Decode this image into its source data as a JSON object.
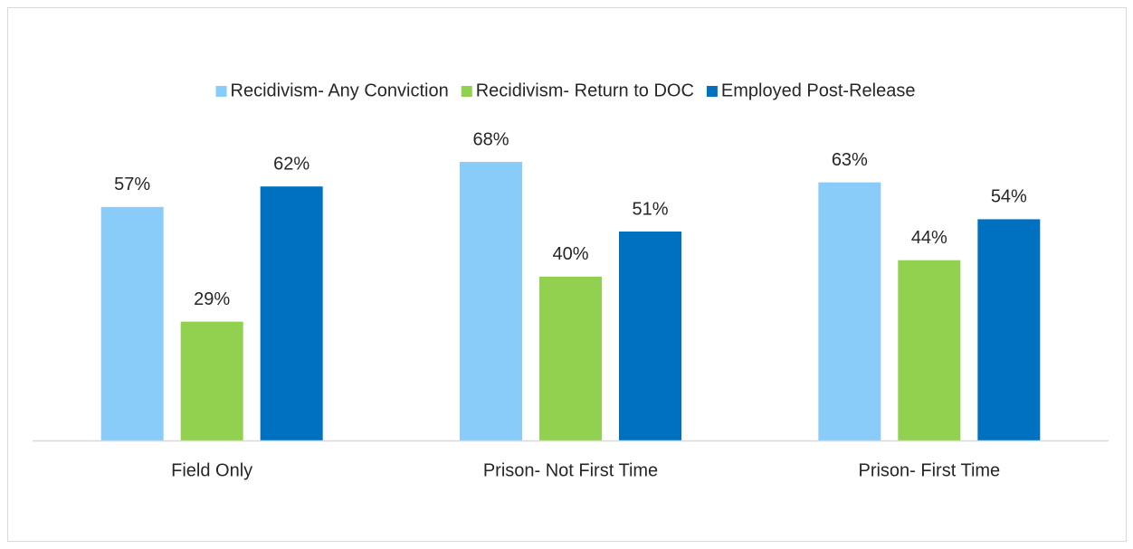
{
  "chart_data": {
    "type": "bar",
    "categories": [
      "Field Only",
      "Prison- Not First Time",
      "Prison- First Time"
    ],
    "series": [
      {
        "name": "Recidivism- Any Conviction",
        "color": "#89cbf9",
        "values": [
          57,
          68,
          63
        ],
        "value_labels": [
          "57%",
          "68%",
          "63%"
        ]
      },
      {
        "name": "Recidivism- Return to DOC",
        "color": "#92d050",
        "values": [
          29,
          40,
          44
        ],
        "value_labels": [
          "29%",
          "40%",
          "44%"
        ]
      },
      {
        "name": "Employed Post-Release",
        "color": "#0070c0",
        "values": [
          62,
          51,
          54
        ],
        "value_labels": [
          "62%",
          "51%",
          "54%"
        ]
      }
    ],
    "legend": "top"
  }
}
